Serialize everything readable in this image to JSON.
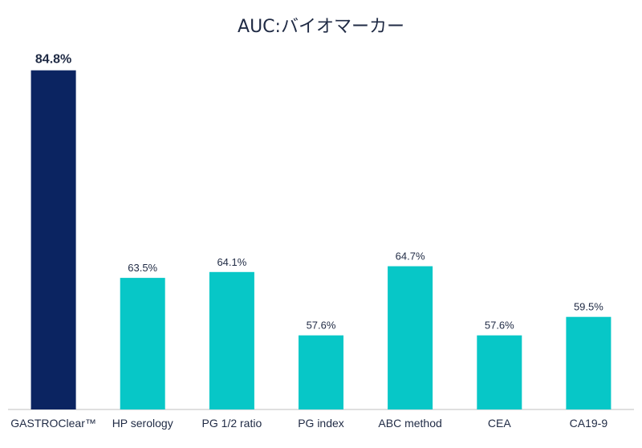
{
  "chart_data": {
    "type": "bar",
    "title": "AUC:バイオマーカー",
    "xlabel": "",
    "ylabel": "",
    "ylim": [
      50,
      86
    ],
    "grid": false,
    "legend": "none",
    "categories": [
      "GASTROClear™",
      "HP serology",
      "PG 1/2 ratio",
      "PG index",
      "ABC method",
      "CEA",
      "CA19-9"
    ],
    "values": [
      84.8,
      63.5,
      64.1,
      57.6,
      64.7,
      57.6,
      59.5
    ],
    "value_labels": [
      "84.8%",
      "63.5%",
      "64.1%",
      "57.6%",
      "64.7%",
      "57.6%",
      "59.5%"
    ],
    "highlight_index": 0,
    "colors": {
      "highlight": "#0b2461",
      "bar": "#07c7c7",
      "baseline": "#bfbfbf",
      "text": "#1f2a44"
    }
  }
}
